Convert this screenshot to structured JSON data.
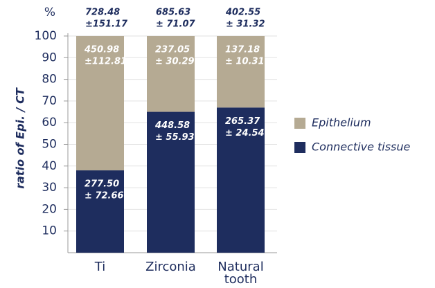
{
  "chart_data": {
    "type": "stacked_bar",
    "unit_label": "%",
    "y_label": "ratio of Epi. / CT",
    "categories": [
      "Ti",
      "Zirconia",
      "Natural tooth"
    ],
    "series": [
      {
        "name": "Connective tissue",
        "color": "#1e2d5e",
        "values": [
          38,
          65,
          67
        ],
        "annotations": [
          [
            "277.50",
            "± 72.66"
          ],
          [
            "448.58",
            "± 55.93"
          ],
          [
            "265.37",
            "± 24.54"
          ]
        ]
      },
      {
        "name": "Epithelium",
        "color": "#b5aa93",
        "values": [
          62,
          35,
          33
        ],
        "annotations": [
          [
            "450.98",
            "±112.81"
          ],
          [
            "237.05",
            "± 30.29"
          ],
          [
            "137.18",
            "± 10.31"
          ]
        ]
      }
    ],
    "totals": [
      [
        "728.48",
        "±151.17"
      ],
      [
        "685.63",
        "± 71.07"
      ],
      [
        "402.55",
        "± 31.32"
      ]
    ],
    "ylim": [
      0,
      100
    ],
    "yticks": [
      10,
      20,
      30,
      40,
      50,
      60,
      70,
      80,
      90,
      100
    ],
    "grid": true
  }
}
